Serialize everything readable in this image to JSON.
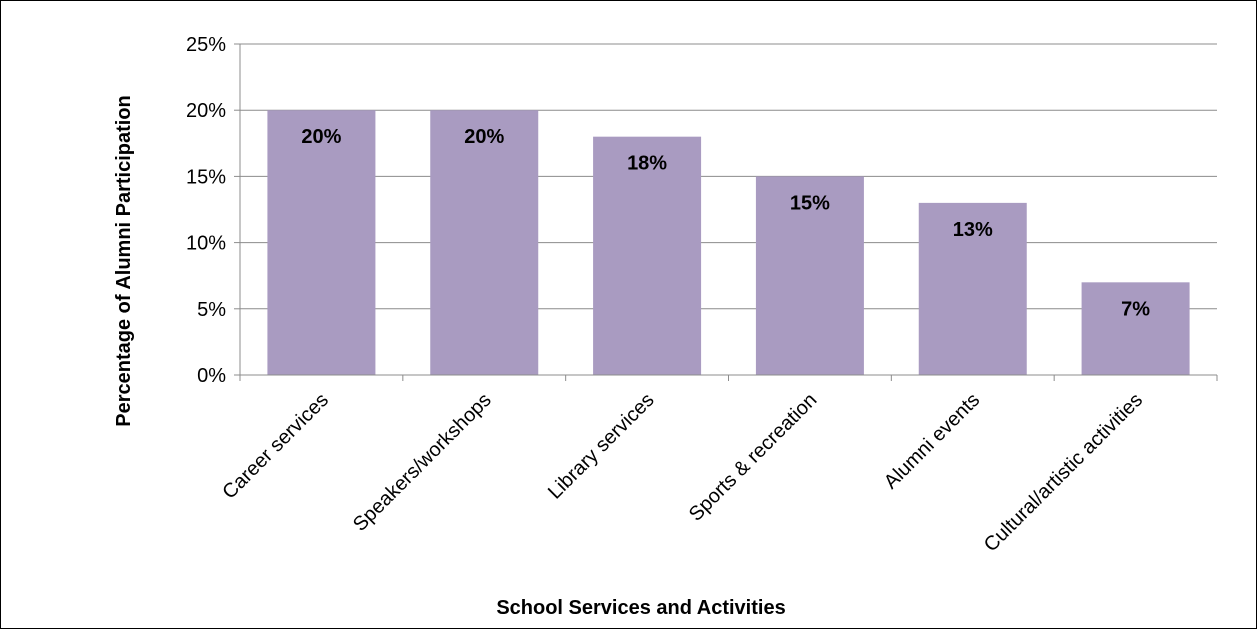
{
  "chart_data": {
    "type": "bar",
    "title": "",
    "xlabel": "School Services  and Activities",
    "ylabel": "Percentage  of Alumni Participation",
    "categories": [
      "Career services",
      "Speakers/workshops",
      "Library services",
      "Sports & recreation",
      "Alumni events",
      "Cultural/artistic activities"
    ],
    "values": [
      20,
      20,
      18,
      15,
      13,
      7
    ],
    "data_labels": [
      "20%",
      "20%",
      "18%",
      "15%",
      "13%",
      "7%"
    ],
    "ylim": [
      0,
      25
    ],
    "yticks": [
      0,
      5,
      10,
      15,
      20,
      25
    ],
    "ytick_labels": [
      "0%",
      "5%",
      "10%",
      "15%",
      "20%",
      "25%"
    ],
    "grid": true,
    "legend": "none",
    "bar_color": "#A99BC1",
    "grid_color": "#8C8C8C"
  }
}
